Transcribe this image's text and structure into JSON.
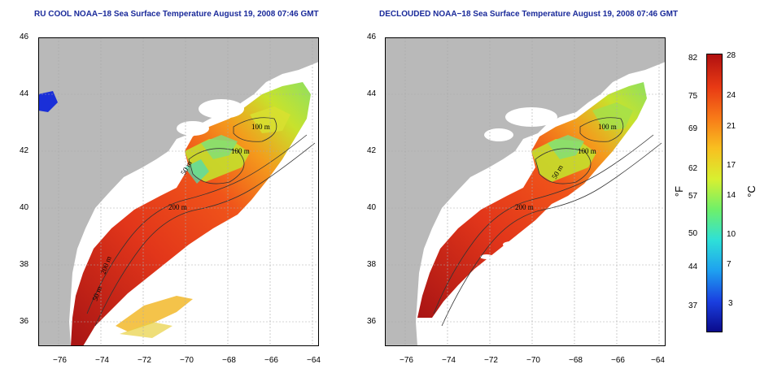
{
  "titles": {
    "left": "RU COOL NOAA−18 Sea Surface Temperature August 19, 2008 07:46 GMT",
    "right": "DECLOUDED NOAA−18 Sea Surface Temperature August 19, 2008 07:46 GMT"
  },
  "axes": {
    "x_ticks": [
      "−76",
      "−74",
      "−72",
      "−70",
      "−68",
      "−66",
      "−64"
    ],
    "y_ticks": [
      "46",
      "44",
      "42",
      "40",
      "38",
      "36"
    ]
  },
  "isobaths": {
    "labels": [
      "100 m",
      "100 m",
      "50 m",
      "200 m",
      "200 m",
      "50 m"
    ]
  },
  "colorbar": {
    "f_ticks": [
      "82",
      "75",
      "69",
      "62",
      "57",
      "50",
      "44",
      "37"
    ],
    "c_ticks": [
      "28",
      "24",
      "21",
      "17",
      "14",
      "10",
      "7",
      "3"
    ],
    "f_unit": "°F",
    "c_unit": "°C",
    "colors": [
      "#0a0a8a",
      "#1a3fe0",
      "#1ea0f0",
      "#2ee0d8",
      "#6ef06a",
      "#d8f030",
      "#f8c020",
      "#f87a18",
      "#e83a14",
      "#b01010"
    ]
  },
  "map_colors": {
    "land": "#b9b9b9",
    "shelf_warm": "#e8401a",
    "deep_warm": "#a81414",
    "mid": "#f48a1c",
    "cool": "#cbe62c",
    "cold": "#46dba2"
  }
}
